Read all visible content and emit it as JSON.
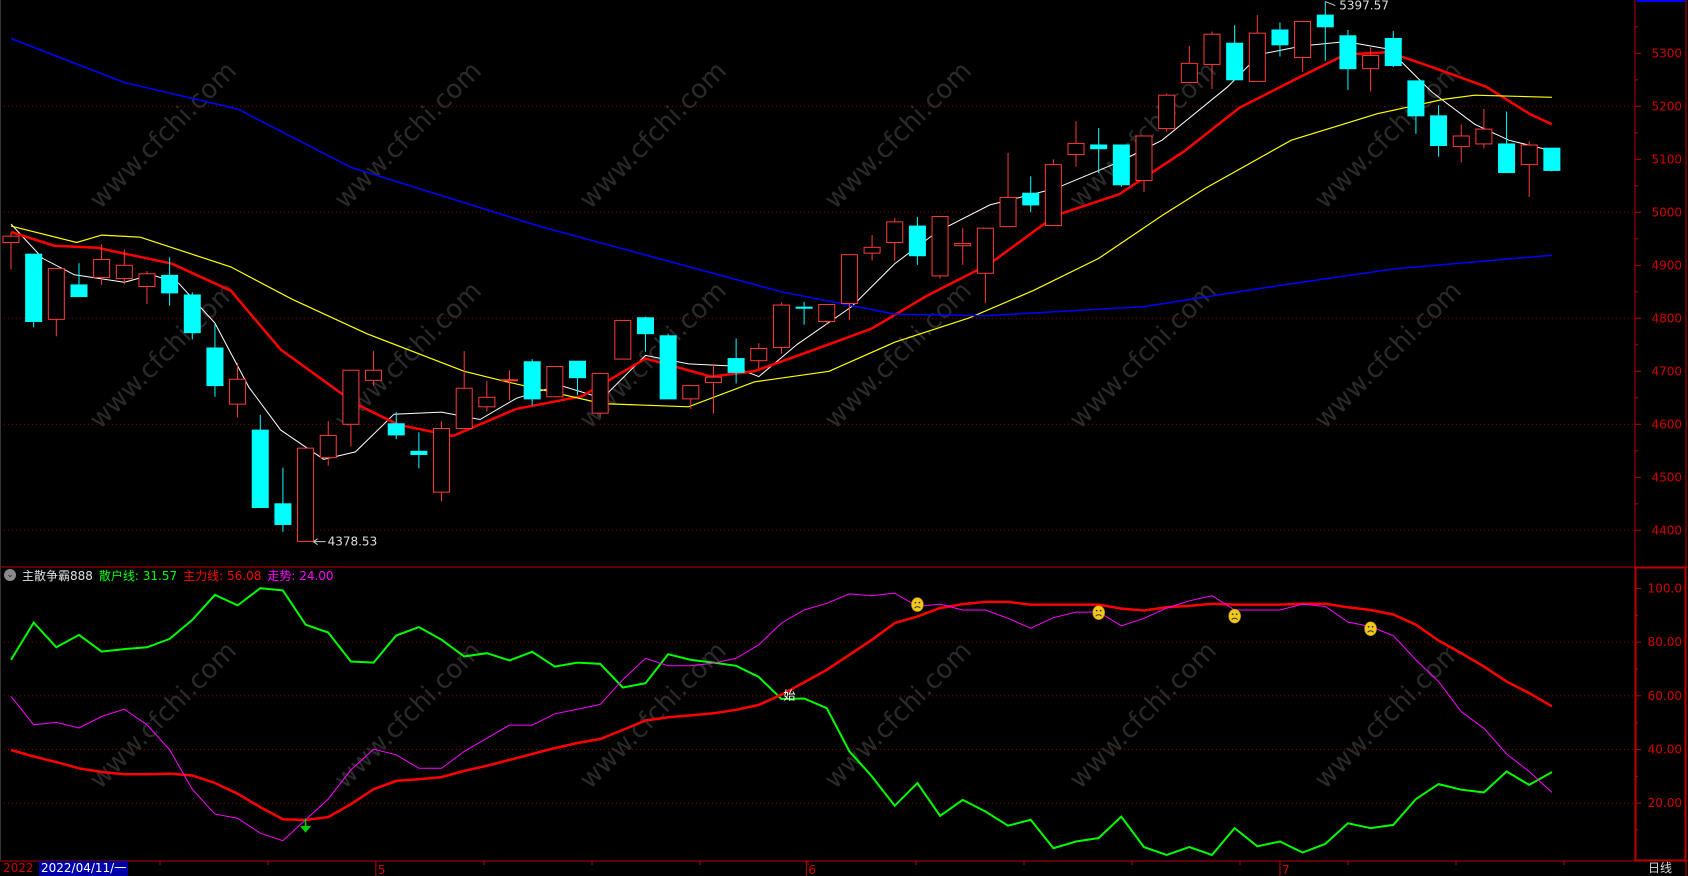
{
  "colors": {
    "background": "#000000",
    "up_candle": "#ff3a3a",
    "down_candle": "#00ffff",
    "ma5": "#ffffff",
    "ma10": "#ff0000",
    "ma20": "#ffff00",
    "ma60": "#0000ff",
    "axis": "#c00000",
    "grid": "#8b0000",
    "retail_line": "#00ff00",
    "main_line": "#ff0000",
    "trend_line": "#ff00ff",
    "date_highlight": "#0000a8"
  },
  "watermark": "www.cfchi.com",
  "indicator_header": {
    "collapse_icon": "chevron-down-circle-icon",
    "name": "主散争霸888",
    "retail_label": "散户线: 31.57",
    "main_label": "主力线: 56.08",
    "trend_label": "走势: 24.00"
  },
  "date_axis": {
    "year": "2022",
    "cursor_date": "2022/04/11/一",
    "months": [
      {
        "label": "5",
        "index": 16.1
      },
      {
        "label": "6",
        "index": 35.1
      },
      {
        "label": "7",
        "index": 56.0
      }
    ],
    "period": "日线"
  },
  "chart_data": [
    {
      "type": "candlestick",
      "panel": "price",
      "y_ticks": [
        "5300",
        "5200",
        "5100",
        "5000",
        "4900",
        "4800",
        "4700",
        "4600",
        "4500",
        "4400"
      ],
      "ylim": [
        4360,
        5420
      ],
      "grid": "dotted every 200",
      "high_label": {
        "text": "5397.57",
        "index": 58,
        "value": 5397.57
      },
      "low_label": {
        "text": "4378.53",
        "index": 13,
        "value": 4378.53
      },
      "ohlc": [
        [
          4943,
          4962,
          4892,
          4955
        ],
        [
          4921,
          4921,
          4783,
          4794
        ],
        [
          4798,
          4894,
          4766,
          4894
        ],
        [
          4863,
          4904,
          4841,
          4841
        ],
        [
          4877,
          4940,
          4863,
          4911
        ],
        [
          4875,
          4930,
          4864,
          4900
        ],
        [
          4860,
          4889,
          4827,
          4884
        ],
        [
          4881,
          4915,
          4824,
          4848
        ],
        [
          4844,
          4849,
          4760,
          4773
        ],
        [
          4744,
          4789,
          4652,
          4673
        ],
        [
          4638,
          4716,
          4613,
          4685
        ],
        [
          4589,
          4618,
          4443,
          4443
        ],
        [
          4450,
          4518,
          4397,
          4411
        ],
        [
          4379,
          4555,
          4378.53,
          4555
        ],
        [
          4537,
          4606,
          4522,
          4579
        ],
        [
          4600,
          4703,
          4558,
          4702
        ],
        [
          4683,
          4738,
          4673,
          4702
        ],
        [
          4601,
          4623,
          4572,
          4580
        ],
        [
          4549,
          4585,
          4517,
          4543
        ],
        [
          4472,
          4606,
          4455,
          4592
        ],
        [
          4592,
          4738,
          4590,
          4668
        ],
        [
          4633,
          4682,
          4624,
          4651
        ],
        [
          4683,
          4702,
          4645,
          4684
        ],
        [
          4718,
          4723,
          4636,
          4648
        ],
        [
          4652,
          4709,
          4652,
          4709
        ],
        [
          4719,
          4719,
          4655,
          4688
        ],
        [
          4621,
          4696,
          4614,
          4696
        ],
        [
          4723,
          4796,
          4723,
          4796
        ],
        [
          4801,
          4803,
          4737,
          4771
        ],
        [
          4767,
          4771,
          4648,
          4648
        ],
        [
          4648,
          4673,
          4629,
          4673
        ],
        [
          4679,
          4714,
          4620,
          4689
        ],
        [
          4724,
          4762,
          4677,
          4698
        ],
        [
          4720,
          4753,
          4706,
          4743
        ],
        [
          4745,
          4830,
          4733,
          4825
        ],
        [
          4821,
          4831,
          4788,
          4819
        ],
        [
          4794,
          4826,
          4788,
          4826
        ],
        [
          4828,
          4920,
          4797,
          4920
        ],
        [
          4923,
          4957,
          4909,
          4934
        ],
        [
          4943,
          4989,
          4909,
          4982
        ],
        [
          4974,
          4991,
          4901,
          4918
        ],
        [
          4880,
          4992,
          4875,
          4992
        ],
        [
          4937,
          4970,
          4901,
          4941
        ],
        [
          4885,
          4970,
          4829,
          4970
        ],
        [
          4973,
          5112,
          4973,
          5028
        ],
        [
          5036,
          5068,
          5000,
          5014
        ],
        [
          4975,
          5100,
          4975,
          5090
        ],
        [
          5109,
          5172,
          5086,
          5130
        ],
        [
          5127,
          5159,
          5074,
          5120
        ],
        [
          5127,
          5127,
          5048,
          5052
        ],
        [
          5060,
          5144,
          5038,
          5144
        ],
        [
          5158,
          5224,
          5152,
          5221
        ],
        [
          5245,
          5314,
          5245,
          5281
        ],
        [
          5279,
          5341,
          5233,
          5336
        ],
        [
          5319,
          5353,
          5250,
          5250
        ],
        [
          5247,
          5372,
          5247,
          5338
        ],
        [
          5344,
          5358,
          5294,
          5316
        ],
        [
          5292,
          5360,
          5265,
          5360
        ],
        [
          5372,
          5397.57,
          5286,
          5350
        ],
        [
          5333,
          5344,
          5231,
          5271
        ],
        [
          5271,
          5311,
          5228,
          5296
        ],
        [
          5328,
          5342,
          5274,
          5277
        ],
        [
          5248,
          5248,
          5148,
          5182
        ],
        [
          5182,
          5202,
          5105,
          5126
        ],
        [
          5124,
          5166,
          5094,
          5144
        ],
        [
          5129,
          5195,
          5120,
          5157
        ],
        [
          5129,
          5190,
          5075,
          5075
        ],
        [
          5090,
          5134,
          5029,
          5127
        ],
        [
          5121,
          5121,
          5077,
          5079
        ]
      ],
      "moving_averages": [
        {
          "key": "ma5",
          "knots": [
            [
              0,
              4978
            ],
            [
              1.4,
              4913
            ],
            [
              2.8,
              4882
            ],
            [
              5,
              4868
            ],
            [
              6.2,
              4882
            ],
            [
              7.4,
              4866
            ],
            [
              9,
              4791
            ],
            [
              10.5,
              4670
            ],
            [
              11.9,
              4589
            ],
            [
              13.8,
              4534
            ],
            [
              15.2,
              4548
            ],
            [
              16.9,
              4619
            ],
            [
              19,
              4623
            ],
            [
              20.7,
              4609
            ],
            [
              22.3,
              4649
            ],
            [
              24.2,
              4674
            ],
            [
              26.1,
              4649
            ],
            [
              28,
              4730
            ],
            [
              29.9,
              4714
            ],
            [
              31.8,
              4710
            ],
            [
              33,
              4690
            ],
            [
              34.7,
              4751
            ],
            [
              37.1,
              4822
            ],
            [
              39,
              4903
            ],
            [
              40.9,
              4964
            ],
            [
              43.2,
              5014
            ],
            [
              46.1,
              5045
            ],
            [
              48.9,
              5095
            ],
            [
              50.8,
              5136
            ],
            [
              53.7,
              5237
            ],
            [
              55.1,
              5298
            ],
            [
              57,
              5314
            ],
            [
              58.9,
              5322
            ],
            [
              60.8,
              5308
            ],
            [
              62.7,
              5227
            ],
            [
              64.6,
              5166
            ],
            [
              66.1,
              5136
            ],
            [
              68,
              5116
            ]
          ]
        },
        {
          "key": "ma10",
          "knots": [
            [
              0,
              4963
            ],
            [
              1.9,
              4937
            ],
            [
              3.8,
              4933
            ],
            [
              7.1,
              4903
            ],
            [
              9.7,
              4852
            ],
            [
              11.9,
              4741
            ],
            [
              15.2,
              4639
            ],
            [
              17.1,
              4599
            ],
            [
              19.5,
              4578
            ],
            [
              22.3,
              4629
            ],
            [
              25.2,
              4653
            ],
            [
              28,
              4724
            ],
            [
              30.9,
              4690
            ],
            [
              32.8,
              4700
            ],
            [
              36.1,
              4751
            ],
            [
              38,
              4781
            ],
            [
              40.4,
              4842
            ],
            [
              43.2,
              4903
            ],
            [
              46.1,
              4994
            ],
            [
              48.9,
              5034
            ],
            [
              51.8,
              5116
            ],
            [
              54.2,
              5197
            ],
            [
              56.5,
              5247
            ],
            [
              58.9,
              5298
            ],
            [
              60.8,
              5302
            ],
            [
              62.7,
              5274
            ],
            [
              65.1,
              5237
            ],
            [
              67,
              5186
            ],
            [
              68,
              5166
            ]
          ]
        },
        {
          "key": "ma20",
          "knots": [
            [
              0,
              4974
            ],
            [
              2.9,
              4943
            ],
            [
              4,
              4957
            ],
            [
              5.7,
              4953
            ],
            [
              9.7,
              4897
            ],
            [
              12.4,
              4836
            ],
            [
              15.7,
              4771
            ],
            [
              20,
              4700
            ],
            [
              21.9,
              4680
            ],
            [
              26.1,
              4639
            ],
            [
              29.9,
              4633
            ],
            [
              32.8,
              4680
            ],
            [
              36.1,
              4700
            ],
            [
              39,
              4755
            ],
            [
              42.3,
              4801
            ],
            [
              45.1,
              4852
            ],
            [
              48,
              4913
            ],
            [
              50.8,
              4994
            ],
            [
              52.7,
              5045
            ],
            [
              56.5,
              5136
            ],
            [
              60.3,
              5186
            ],
            [
              63.2,
              5213
            ],
            [
              64.6,
              5221
            ],
            [
              68,
              5217
            ]
          ]
        },
        {
          "key": "ma60",
          "knots": [
            [
              0,
              5328
            ],
            [
              5,
              5245
            ],
            [
              10,
              5195
            ],
            [
              15,
              5085
            ],
            [
              23.3,
              4974
            ],
            [
              34,
              4850
            ],
            [
              39,
              4808
            ],
            [
              43,
              4805
            ],
            [
              50,
              4822
            ],
            [
              56,
              4862
            ],
            [
              61,
              4893
            ],
            [
              68,
              4919
            ]
          ]
        }
      ]
    },
    {
      "type": "line",
      "panel": "indicator",
      "y_ticks": [
        "100.0",
        "80.00",
        "60.00",
        "40.00",
        "20.00"
      ],
      "ylim": [
        0,
        100
      ],
      "grid": "dotted at 20, 40, 60, 80",
      "series": [
        {
          "name": "散户线",
          "color_key": "retail_line",
          "values": [
            73.4,
            87.3,
            78.1,
            82.7,
            76.5,
            77.4,
            78.1,
            81.2,
            88.3,
            97.6,
            93.7,
            100.1,
            99.3,
            86.5,
            83.6,
            72.8,
            72.4,
            82.5,
            85.6,
            80.9,
            74.7,
            75.9,
            73.2,
            76.4,
            70.9,
            72.4,
            71.9,
            63.1,
            64.7,
            75.5,
            73.4,
            72.4,
            71.2,
            67.0,
            58.8,
            59.0,
            55.4,
            39.3,
            29.9,
            19.0,
            27.5,
            15.3,
            21.2,
            16.9,
            11.6,
            13.8,
            3.2,
            5.7,
            7.0,
            15.0,
            3.6,
            0.7,
            3.6,
            0.7,
            10.7,
            3.9,
            5.7,
            1.6,
            4.8,
            12.5,
            10.7,
            11.9,
            21.5,
            27.1,
            25.0,
            24.0,
            31.8,
            26.8,
            31.57
          ]
        },
        {
          "name": "主力线",
          "color_key": "main_line",
          "values": [
            39.8,
            37.4,
            35.3,
            33.0,
            31.6,
            30.8,
            30.8,
            31.0,
            30.3,
            27.5,
            23.5,
            18.5,
            14.0,
            13.7,
            14.8,
            19.6,
            25.2,
            28.3,
            28.9,
            29.7,
            32.0,
            33.9,
            36.1,
            38.3,
            40.5,
            42.4,
            43.9,
            47.3,
            50.8,
            52.0,
            52.7,
            53.5,
            54.8,
            56.6,
            60.4,
            65.0,
            69.7,
            75.3,
            80.9,
            87.1,
            89.6,
            92.7,
            94.2,
            95.0,
            95.0,
            94.0,
            94.0,
            94.0,
            94.0,
            92.5,
            91.8,
            93.0,
            93.5,
            94.3,
            94.0,
            94.0,
            94.0,
            94.3,
            94.3,
            93.0,
            92.0,
            90.3,
            86.5,
            80.6,
            75.9,
            70.9,
            65.3,
            61.0,
            56.08
          ]
        },
        {
          "name": "走势",
          "color_key": "trend_line",
          "values": [
            59.8,
            49.2,
            50.1,
            48.0,
            52.3,
            55.0,
            49.2,
            39.9,
            25.2,
            15.9,
            14.4,
            8.8,
            6.0,
            13.8,
            21.5,
            32.4,
            40.1,
            38.0,
            33.0,
            33.0,
            39.3,
            44.2,
            49.1,
            49.1,
            53.3,
            55.0,
            56.8,
            66.0,
            74.0,
            71.2,
            71.2,
            72.2,
            74.0,
            79.0,
            87.1,
            92.0,
            94.5,
            98.0,
            97.3,
            98.3,
            93.3,
            94.2,
            92.0,
            92.0,
            88.9,
            85.2,
            89.1,
            91.2,
            91.2,
            86.1,
            88.9,
            92.7,
            95.4,
            97.3,
            92.0,
            92.0,
            92.0,
            94.2,
            93.3,
            87.5,
            85.8,
            82.4,
            73.4,
            65.3,
            54.1,
            47.9,
            38.3,
            31.8,
            24.0
          ]
        }
      ],
      "signals": [
        {
          "type": "sad-face",
          "icon": "sad-face-icon",
          "index": 40,
          "value": 94
        },
        {
          "type": "sad-face",
          "icon": "sad-face-icon",
          "index": 48,
          "value": 91
        },
        {
          "type": "sad-face",
          "icon": "sad-face-icon",
          "index": 54,
          "value": 89.7
        },
        {
          "type": "sad-face",
          "icon": "sad-face-icon",
          "index": 60,
          "value": 85
        },
        {
          "type": "text",
          "text": "始",
          "index": 34,
          "value": 60.5
        },
        {
          "type": "down-arrow",
          "icon": "arrow-down-icon",
          "index": 13,
          "value": 12
        }
      ]
    }
  ]
}
